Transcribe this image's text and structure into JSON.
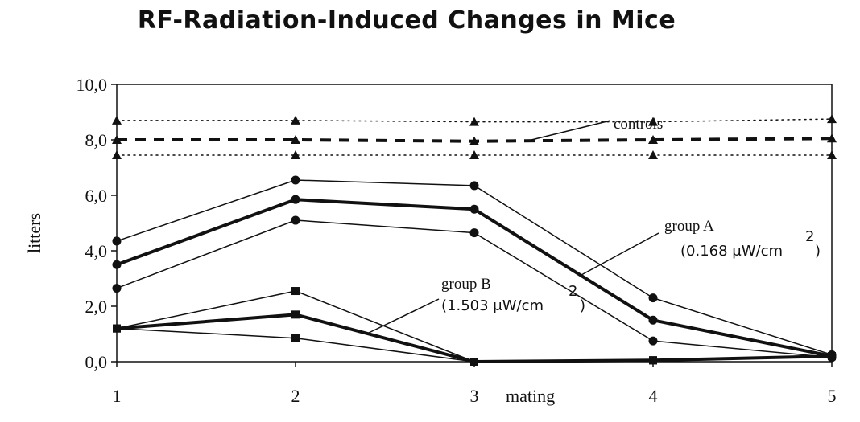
{
  "chart_data": {
    "type": "line",
    "title": "RF-Radiation-Induced Changes in Mice",
    "xlabel": "mating",
    "ylabel": "litters",
    "x": [
      1,
      2,
      3,
      4,
      5
    ],
    "xticks": [
      "1",
      "2",
      "3",
      "4",
      "5"
    ],
    "ylim": [
      0,
      10
    ],
    "yticks": [
      "0,0",
      "2,0",
      "4,0",
      "6,0",
      "8,0",
      "10,0"
    ],
    "grid": false,
    "series": [
      {
        "group": "controls",
        "role": "upper",
        "marker": "triangle",
        "style": "dotted",
        "values": [
          8.7,
          8.7,
          8.65,
          8.65,
          8.75
        ]
      },
      {
        "group": "controls",
        "role": "mean",
        "marker": "triangle",
        "style": "dashed",
        "values": [
          8.0,
          8.0,
          7.95,
          8.0,
          8.05
        ]
      },
      {
        "group": "controls",
        "role": "lower",
        "marker": "triangle",
        "style": "dotted",
        "values": [
          7.45,
          7.45,
          7.45,
          7.45,
          7.45
        ]
      },
      {
        "group": "group A",
        "role": "upper",
        "marker": "circle",
        "style": "thin",
        "values": [
          4.35,
          6.55,
          6.35,
          2.3,
          0.25
        ]
      },
      {
        "group": "group A",
        "role": "mean",
        "marker": "circle",
        "style": "thick",
        "values": [
          3.5,
          5.85,
          5.5,
          1.5,
          0.2
        ]
      },
      {
        "group": "group A",
        "role": "lower",
        "marker": "circle",
        "style": "thin",
        "values": [
          2.65,
          5.1,
          4.65,
          0.75,
          0.15
        ]
      },
      {
        "group": "group B",
        "role": "upper",
        "marker": "square",
        "style": "thin",
        "values": [
          1.2,
          2.55,
          0.0,
          0.05,
          0.2
        ]
      },
      {
        "group": "group B",
        "role": "mean",
        "marker": "square",
        "style": "thick",
        "values": [
          1.2,
          1.7,
          0.0,
          0.05,
          0.2
        ]
      },
      {
        "group": "group B",
        "role": "lower",
        "marker": "square",
        "style": "thin",
        "values": [
          1.2,
          0.85,
          0.0,
          0.05,
          0.2
        ]
      }
    ],
    "annotations": {
      "controls": "controls",
      "group_a": "group A",
      "group_a_dose": "(0.168 μW/cm",
      "group_b": "group B",
      "group_b_dose": "(1.503 μW/cm",
      "dose_exponent": "2",
      "dose_close": ")"
    }
  }
}
